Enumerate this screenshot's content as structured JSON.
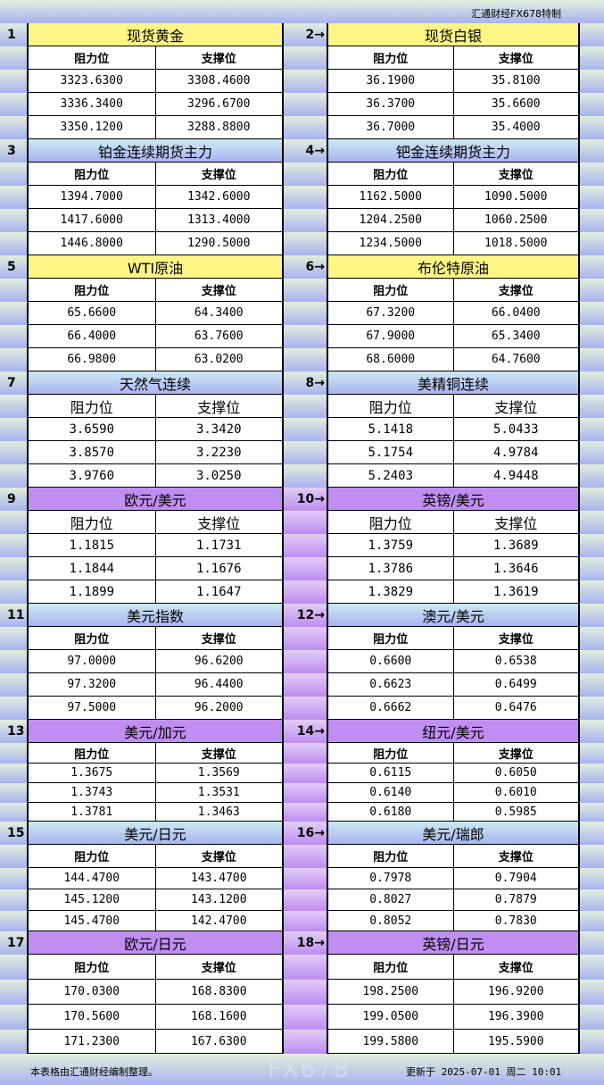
{
  "header": {
    "brand": "汇通财经FX678特制"
  },
  "labels": {
    "resistance": "阻力位",
    "support": "支撑位"
  },
  "colors": {
    "gold_header": "#fff586",
    "blue_header": "#a8b4f0",
    "purple_header": "#c08ef0"
  },
  "sections": [
    {
      "left": {
        "num": "1",
        "title": "现货黄金",
        "rows": [
          [
            "3323.6300",
            "3308.4600"
          ],
          [
            "3336.3400",
            "3296.6700"
          ],
          [
            "3350.1200",
            "3288.8800"
          ]
        ]
      },
      "right": {
        "num": "2→",
        "title": "现货白银",
        "rows": [
          [
            "36.1900",
            "35.8100"
          ],
          [
            "36.3700",
            "35.6600"
          ],
          [
            "36.7000",
            "35.4000"
          ]
        ]
      },
      "style": "yellow"
    },
    {
      "left": {
        "num": "3",
        "title": "铂金连续期货主力",
        "rows": [
          [
            "1394.7000",
            "1342.6000"
          ],
          [
            "1417.6000",
            "1313.4000"
          ],
          [
            "1446.8000",
            "1290.5000"
          ]
        ]
      },
      "right": {
        "num": "4→",
        "title": "钯金连续期货主力",
        "rows": [
          [
            "1162.5000",
            "1090.5000"
          ],
          [
            "1204.2500",
            "1060.2500"
          ],
          [
            "1234.5000",
            "1018.5000"
          ]
        ]
      },
      "style": "blue"
    },
    {
      "left": {
        "num": "5",
        "title": "WTI原油",
        "rows": [
          [
            "65.6600",
            "64.3400"
          ],
          [
            "66.4000",
            "63.7600"
          ],
          [
            "66.9800",
            "63.0200"
          ]
        ]
      },
      "right": {
        "num": "6→",
        "title": "布伦特原油",
        "rows": [
          [
            "67.3200",
            "66.0400"
          ],
          [
            "67.9000",
            "65.3400"
          ],
          [
            "68.6000",
            "64.7600"
          ]
        ]
      },
      "style": "yellow"
    },
    {
      "left": {
        "num": "7",
        "title": "天然气连续",
        "rows": [
          [
            "3.6590",
            "3.3420"
          ],
          [
            "3.8570",
            "3.2230"
          ],
          [
            "3.9760",
            "3.0250"
          ]
        ]
      },
      "right": {
        "num": "8→",
        "title": "美精铜连续",
        "rows": [
          [
            "5.1418",
            "5.0433"
          ],
          [
            "5.1754",
            "4.9784"
          ],
          [
            "5.2403",
            "4.9448"
          ]
        ]
      },
      "style": "blue"
    },
    {
      "left": {
        "num": "9",
        "title": "欧元/美元",
        "rows": [
          [
            "1.1815",
            "1.1731"
          ],
          [
            "1.1844",
            "1.1676"
          ],
          [
            "1.1899",
            "1.1647"
          ]
        ]
      },
      "right": {
        "num": "10→",
        "title": "英镑/美元",
        "rows": [
          [
            "1.3759",
            "1.3689"
          ],
          [
            "1.3786",
            "1.3646"
          ],
          [
            "1.3829",
            "1.3619"
          ]
        ]
      },
      "style": "purple"
    },
    {
      "left": {
        "num": "11",
        "title": "美元指数",
        "rows": [
          [
            "97.0000",
            "96.6200"
          ],
          [
            "97.3200",
            "96.4400"
          ],
          [
            "97.5000",
            "96.2000"
          ]
        ]
      },
      "right": {
        "num": "12→",
        "title": "澳元/美元",
        "rows": [
          [
            "0.6600",
            "0.6538"
          ],
          [
            "0.6623",
            "0.6499"
          ],
          [
            "0.6662",
            "0.6476"
          ]
        ]
      },
      "style": "blue"
    },
    {
      "left": {
        "num": "13",
        "title": "美元/加元",
        "rows": [
          [
            "1.3675",
            "1.3569"
          ],
          [
            "1.3743",
            "1.3531"
          ],
          [
            "1.3781",
            "1.3463"
          ]
        ]
      },
      "right": {
        "num": "14→",
        "title": "纽元/美元",
        "rows": [
          [
            "0.6115",
            "0.6050"
          ],
          [
            "0.6140",
            "0.6010"
          ],
          [
            "0.6180",
            "0.5985"
          ]
        ]
      },
      "style": "purple"
    },
    {
      "left": {
        "num": "15",
        "title": "美元/日元",
        "rows": [
          [
            "144.4700",
            "143.4700"
          ],
          [
            "145.1200",
            "143.1200"
          ],
          [
            "145.4700",
            "142.4700"
          ]
        ]
      },
      "right": {
        "num": "16→",
        "title": "美元/瑞郎",
        "rows": [
          [
            "0.7978",
            "0.7904"
          ],
          [
            "0.8027",
            "0.7879"
          ],
          [
            "0.8052",
            "0.7830"
          ]
        ]
      },
      "style": "blue"
    },
    {
      "left": {
        "num": "17",
        "title": "欧元/日元",
        "rows": [
          [
            "170.0300",
            "168.8300"
          ],
          [
            "170.5600",
            "168.1600"
          ],
          [
            "171.2300",
            "167.6300"
          ]
        ]
      },
      "right": {
        "num": "18→",
        "title": "英镑/日元",
        "rows": [
          [
            "198.2500",
            "196.9200"
          ],
          [
            "199.0500",
            "196.3900"
          ],
          [
            "199.5800",
            "195.5900"
          ]
        ]
      },
      "style": "purple"
    }
  ],
  "footer": {
    "note": "本表格由汇通财经编制整理。",
    "updated": "更新于 2025-07-01 周二 10:01",
    "watermark": "FX678"
  }
}
